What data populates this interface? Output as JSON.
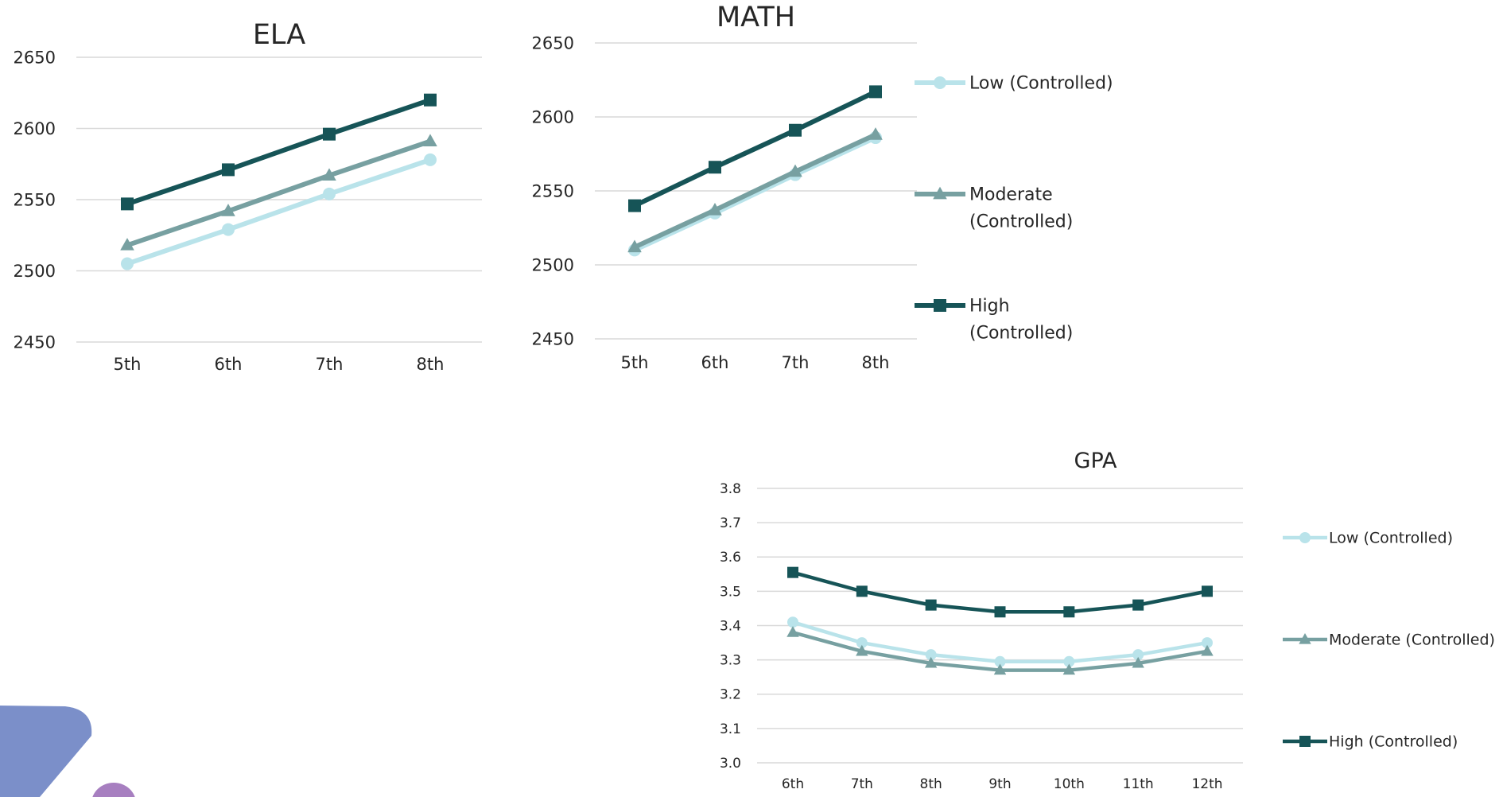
{
  "colors": {
    "low": "#b9e3ea",
    "moderate": "#77a0a1",
    "high": "#165457",
    "grid": "#d9d9d9",
    "text": "#262626",
    "deco_blue": "#7b8fc9",
    "deco_purple": "#a77fc0"
  },
  "chart_data": [
    {
      "id": "ela",
      "type": "line",
      "title": "ELA",
      "categories": [
        "5th",
        "6th",
        "7th",
        "8th"
      ],
      "ylim": [
        2450,
        2650
      ],
      "yticks": [
        "2450",
        "2500",
        "2550",
        "2600",
        "2650"
      ],
      "grid": true,
      "legend": "none",
      "series": [
        {
          "name": "Low (Controlled)",
          "marker": "circle",
          "values": [
            2505,
            2529,
            2554,
            2578
          ]
        },
        {
          "name": "Moderate (Controlled)",
          "marker": "triangle",
          "values": [
            2518,
            2542,
            2567,
            2591
          ]
        },
        {
          "name": "High (Controlled)",
          "marker": "square",
          "values": [
            2547,
            2571,
            2596,
            2620
          ]
        }
      ]
    },
    {
      "id": "math",
      "type": "line",
      "title": "MATH",
      "categories": [
        "5th",
        "6th",
        "7th",
        "8th"
      ],
      "ylim": [
        2450,
        2650
      ],
      "yticks": [
        "2450",
        "2500",
        "2550",
        "2600",
        "2650"
      ],
      "grid": true,
      "legend": "right",
      "legend_lines": [
        [
          "Low (Controlled)"
        ],
        [
          "Moderate",
          "(Controlled)"
        ],
        [
          "High",
          "(Controlled)"
        ]
      ],
      "series": [
        {
          "name": "Low (Controlled)",
          "marker": "circle",
          "values": [
            2510,
            2535,
            2561,
            2586
          ]
        },
        {
          "name": "Moderate (Controlled)",
          "marker": "triangle",
          "values": [
            2512,
            2537,
            2563,
            2588
          ]
        },
        {
          "name": "High (Controlled)",
          "marker": "square",
          "values": [
            2540,
            2566,
            2591,
            2617
          ]
        }
      ]
    },
    {
      "id": "gpa",
      "type": "line",
      "title": "GPA",
      "categories": [
        "6th",
        "7th",
        "8th",
        "9th",
        "10th",
        "11th",
        "12th"
      ],
      "ylim": [
        3.0,
        3.8
      ],
      "yticks": [
        "3.0",
        "3.1",
        "3.2",
        "3.3",
        "3.4",
        "3.5",
        "3.6",
        "3.7",
        "3.8"
      ],
      "grid": true,
      "legend": "right",
      "legend_lines": [
        [
          "Low (Controlled)"
        ],
        [
          "Moderate (Controlled)"
        ],
        [
          "High (Controlled)"
        ]
      ],
      "series": [
        {
          "name": "Low (Controlled)",
          "marker": "circle",
          "values": [
            3.41,
            3.35,
            3.315,
            3.295,
            3.295,
            3.315,
            3.35
          ]
        },
        {
          "name": "Moderate (Controlled)",
          "marker": "triangle",
          "values": [
            3.38,
            3.325,
            3.29,
            3.27,
            3.27,
            3.29,
            3.325
          ]
        },
        {
          "name": "High (Controlled)",
          "marker": "square",
          "values": [
            3.555,
            3.5,
            3.46,
            3.44,
            3.44,
            3.46,
            3.5
          ]
        }
      ]
    }
  ]
}
